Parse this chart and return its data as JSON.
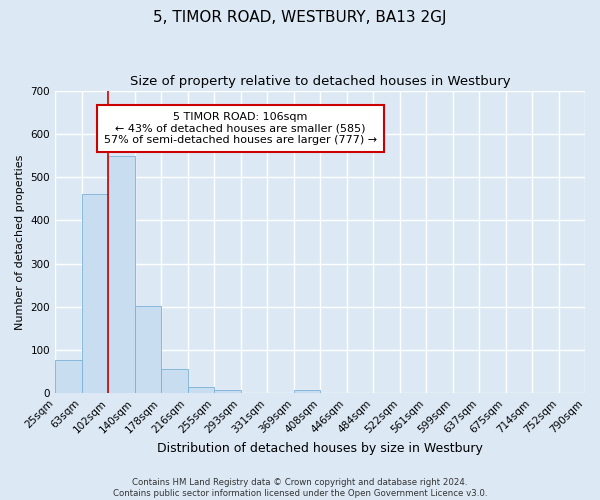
{
  "title": "5, TIMOR ROAD, WESTBURY, BA13 2GJ",
  "subtitle": "Size of property relative to detached houses in Westbury",
  "xlabel": "Distribution of detached houses by size in Westbury",
  "ylabel": "Number of detached properties",
  "footer_line1": "Contains HM Land Registry data © Crown copyright and database right 2024.",
  "footer_line2": "Contains public sector information licensed under the Open Government Licence v3.0.",
  "bin_labels": [
    "25sqm",
    "63sqm",
    "102sqm",
    "140sqm",
    "178sqm",
    "216sqm",
    "255sqm",
    "293sqm",
    "331sqm",
    "369sqm",
    "408sqm",
    "446sqm",
    "484sqm",
    "522sqm",
    "561sqm",
    "599sqm",
    "637sqm",
    "675sqm",
    "714sqm",
    "752sqm",
    "790sqm"
  ],
  "bar_heights": [
    78,
    460,
    548,
    202,
    57,
    15,
    8,
    0,
    0,
    8,
    0,
    0,
    0,
    0,
    0,
    0,
    0,
    0,
    0,
    0
  ],
  "bar_color": "#c8ddf0",
  "bar_edge_color": "#7ab0d8",
  "ylim": [
    0,
    700
  ],
  "yticks": [
    0,
    100,
    200,
    300,
    400,
    500,
    600,
    700
  ],
  "property_line_bin_index": 2,
  "annotation_title": "5 TIMOR ROAD: 106sqm",
  "annotation_line1": "← 43% of detached houses are smaller (585)",
  "annotation_line2": "57% of semi-detached houses are larger (777) →",
  "annotation_box_color": "#ffffff",
  "annotation_box_edge_color": "#cc0000",
  "vline_color": "#cc0000",
  "bg_color": "#dce9f5",
  "plot_bg_color": "#dce9f5",
  "grid_color": "#ffffff",
  "title_fontsize": 11,
  "subtitle_fontsize": 9.5,
  "xlabel_fontsize": 9,
  "ylabel_fontsize": 8,
  "tick_fontsize": 7.5,
  "annotation_fontsize": 8,
  "footer_fontsize": 6.2
}
